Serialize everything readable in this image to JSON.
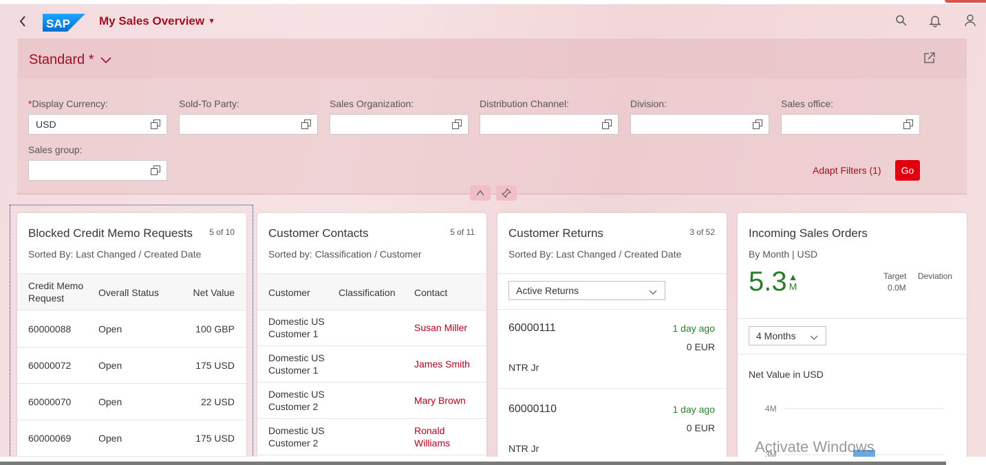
{
  "shell": {
    "app_title": "My Sales Overview",
    "logo_text": "SAP"
  },
  "filter": {
    "variant": "Standard *",
    "fields": [
      {
        "label": "Display Currency:",
        "value": "USD",
        "required": true
      },
      {
        "label": "Sold-To Party:",
        "value": ""
      },
      {
        "label": "Sales Organization:",
        "value": ""
      },
      {
        "label": "Distribution Channel:",
        "value": ""
      },
      {
        "label": "Division:",
        "value": ""
      },
      {
        "label": "Sales office:",
        "value": ""
      },
      {
        "label": "Sales group:",
        "value": ""
      }
    ],
    "required_mark": "*",
    "adapt_label": "Adapt Filters (1)",
    "go_label": "Go"
  },
  "cards": {
    "credit_memo": {
      "title": "Blocked Credit Memo Requests",
      "count": "5 of 10",
      "subtitle": "Sorted By: Last Changed / Created Date",
      "headers": [
        "Credit Memo Request",
        "Overall Status",
        "Net Value"
      ],
      "rows": [
        {
          "id": "60000088",
          "status": "Open",
          "value": "100 GBP"
        },
        {
          "id": "60000072",
          "status": "Open",
          "value": "175 USD"
        },
        {
          "id": "60000070",
          "status": "Open",
          "value": "22 USD"
        },
        {
          "id": "60000069",
          "status": "Open",
          "value": "175 USD"
        }
      ]
    },
    "contacts": {
      "title": "Customer Contacts",
      "count": "5 of 11",
      "subtitle": "Sorted by: Classification / Customer",
      "headers": [
        "Customer",
        "Classification",
        "Contact"
      ],
      "rows": [
        {
          "customer": "Domestic US Customer 1",
          "classification": "",
          "contact": "Susan Miller"
        },
        {
          "customer": "Domestic US Customer 1",
          "classification": "",
          "contact": "James Smith"
        },
        {
          "customer": "Domestic US Customer 2",
          "classification": "",
          "contact": "Mary Brown"
        },
        {
          "customer": "Domestic US Customer 2",
          "classification": "",
          "contact": "Ronald Williams"
        }
      ]
    },
    "returns": {
      "title": "Customer Returns",
      "count": "3 of 52",
      "subtitle": "Sorted By: Last Changed / Created Date",
      "filter_value": "Active Returns",
      "items": [
        {
          "id": "60000111",
          "time": "1 day ago",
          "amount": "0 EUR",
          "name": "NTR Jr"
        },
        {
          "id": "60000110",
          "time": "1 day ago",
          "amount": "0 EUR",
          "name": "NTR Jr"
        }
      ]
    },
    "orders": {
      "title": "Incoming Sales Orders",
      "subtitle": "By Month | USD",
      "kpi_value": "5.3",
      "kpi_unit": "M",
      "target_label": "Target",
      "target_value": "0.0M",
      "deviation_label": "Deviation",
      "period": "4 Months",
      "chart_title": "Net Value in USD",
      "chart_data": {
        "type": "bar",
        "ylabel": "",
        "yticks": [
          "4M",
          "3M"
        ],
        "ylim": [
          3,
          4.5
        ]
      }
    }
  },
  "watermark": "Activate Windows"
}
